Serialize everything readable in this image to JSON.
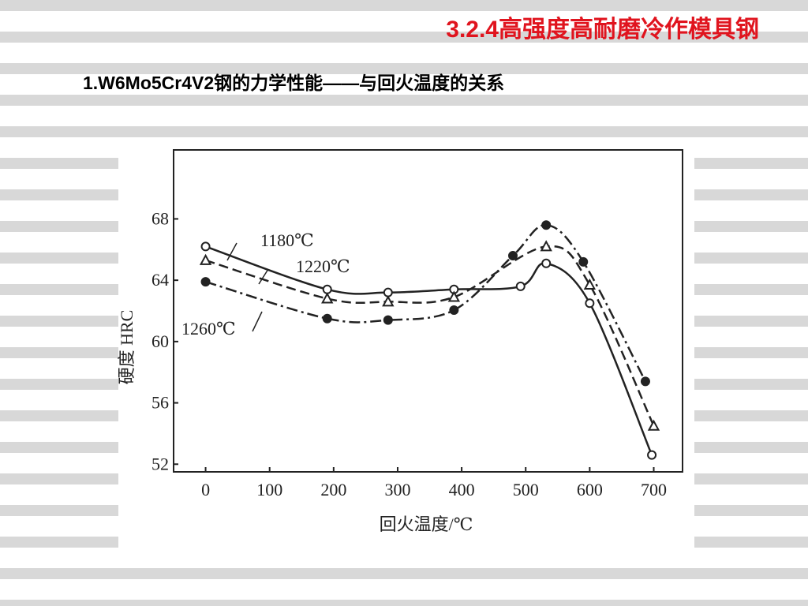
{
  "header": {
    "title": "3.2.4高强度高耐磨冷作模具钢",
    "subtitle": "1.W6Mo5Cr4V2钢的力学性能——与回火温度的关系"
  },
  "chart_data": {
    "type": "line",
    "x_label": "回火温度/℃",
    "y_label": "硬度 HRC",
    "xlim": [
      -50,
      745
    ],
    "xticks": [
      0,
      100,
      200,
      300,
      400,
      500,
      600,
      700
    ],
    "ylim": [
      51.5,
      72.5
    ],
    "yticks": [
      52,
      56,
      60,
      64,
      68
    ],
    "series": [
      {
        "name": "1180℃",
        "color": "#222222",
        "marker": "open-circle",
        "line": "solid",
        "x": [
          0,
          190,
          285,
          388,
          492,
          532,
          600,
          697
        ],
        "values": [
          66.2,
          63.4,
          63.2,
          63.4,
          63.6,
          65.1,
          62.5,
          52.6
        ]
      },
      {
        "name": "1220℃",
        "color": "#222222",
        "marker": "open-triangle",
        "line": "dashed",
        "x": [
          0,
          190,
          285,
          388,
          532,
          600,
          700
        ],
        "values": [
          65.3,
          62.8,
          62.6,
          62.9,
          66.2,
          63.7,
          54.5
        ]
      },
      {
        "name": "1260℃",
        "color": "#222222",
        "marker": "filled-circle",
        "line": "dash-dot",
        "x": [
          0,
          190,
          285,
          388,
          480,
          532,
          590,
          687
        ],
        "values": [
          63.9,
          61.5,
          61.4,
          62.05,
          65.6,
          67.6,
          65.2,
          57.4
        ]
      }
    ]
  }
}
